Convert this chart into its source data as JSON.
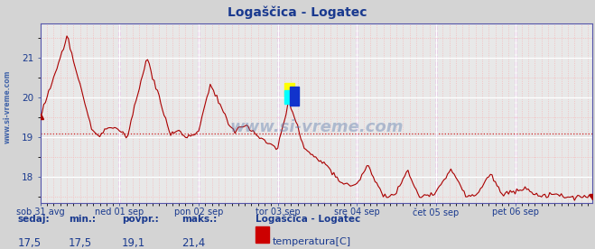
{
  "title": "Logaščica - Logatec",
  "title_color": "#1a3a8f",
  "bg_color": "#d4d4d4",
  "plot_bg_color": "#e8e8e8",
  "grid_color_major": "#ffffff",
  "grid_color_minor": "#f5b8b8",
  "line_color": "#aa0000",
  "ylim": [
    17.35,
    21.85
  ],
  "yticks": [
    18,
    19,
    20,
    21
  ],
  "avg_line_y": 19.1,
  "avg_line_color": "#cc2222",
  "vline_color": "#dd00dd",
  "tick_color": "#1a3a8f",
  "footer_bg": "#c8c8c8",
  "watermark": "www.si-vreme.com",
  "x_labels": [
    "sob 31 avg",
    "ned 01 sep",
    "pon 02 sep",
    "tor 03 sep",
    "sre 04 sep",
    "čet 05 sep",
    "pet 06 sep"
  ],
  "n_points": 336,
  "legend_label": "Logaščica - Logatec",
  "legend_series": "temperatura[C]",
  "legend_color": "#cc0000",
  "footer_label_color": "#1a3a8f",
  "footer_value_color": "#1a3a8f",
  "footer_labels": [
    "sedaj:",
    "min.:",
    "povpr.:",
    "maks.:"
  ],
  "footer_values": [
    "17,5",
    "17,5",
    "19,1",
    "21,4"
  ],
  "sidebar_text": "www.si-vreme.com",
  "sidebar_color": "#4466aa"
}
